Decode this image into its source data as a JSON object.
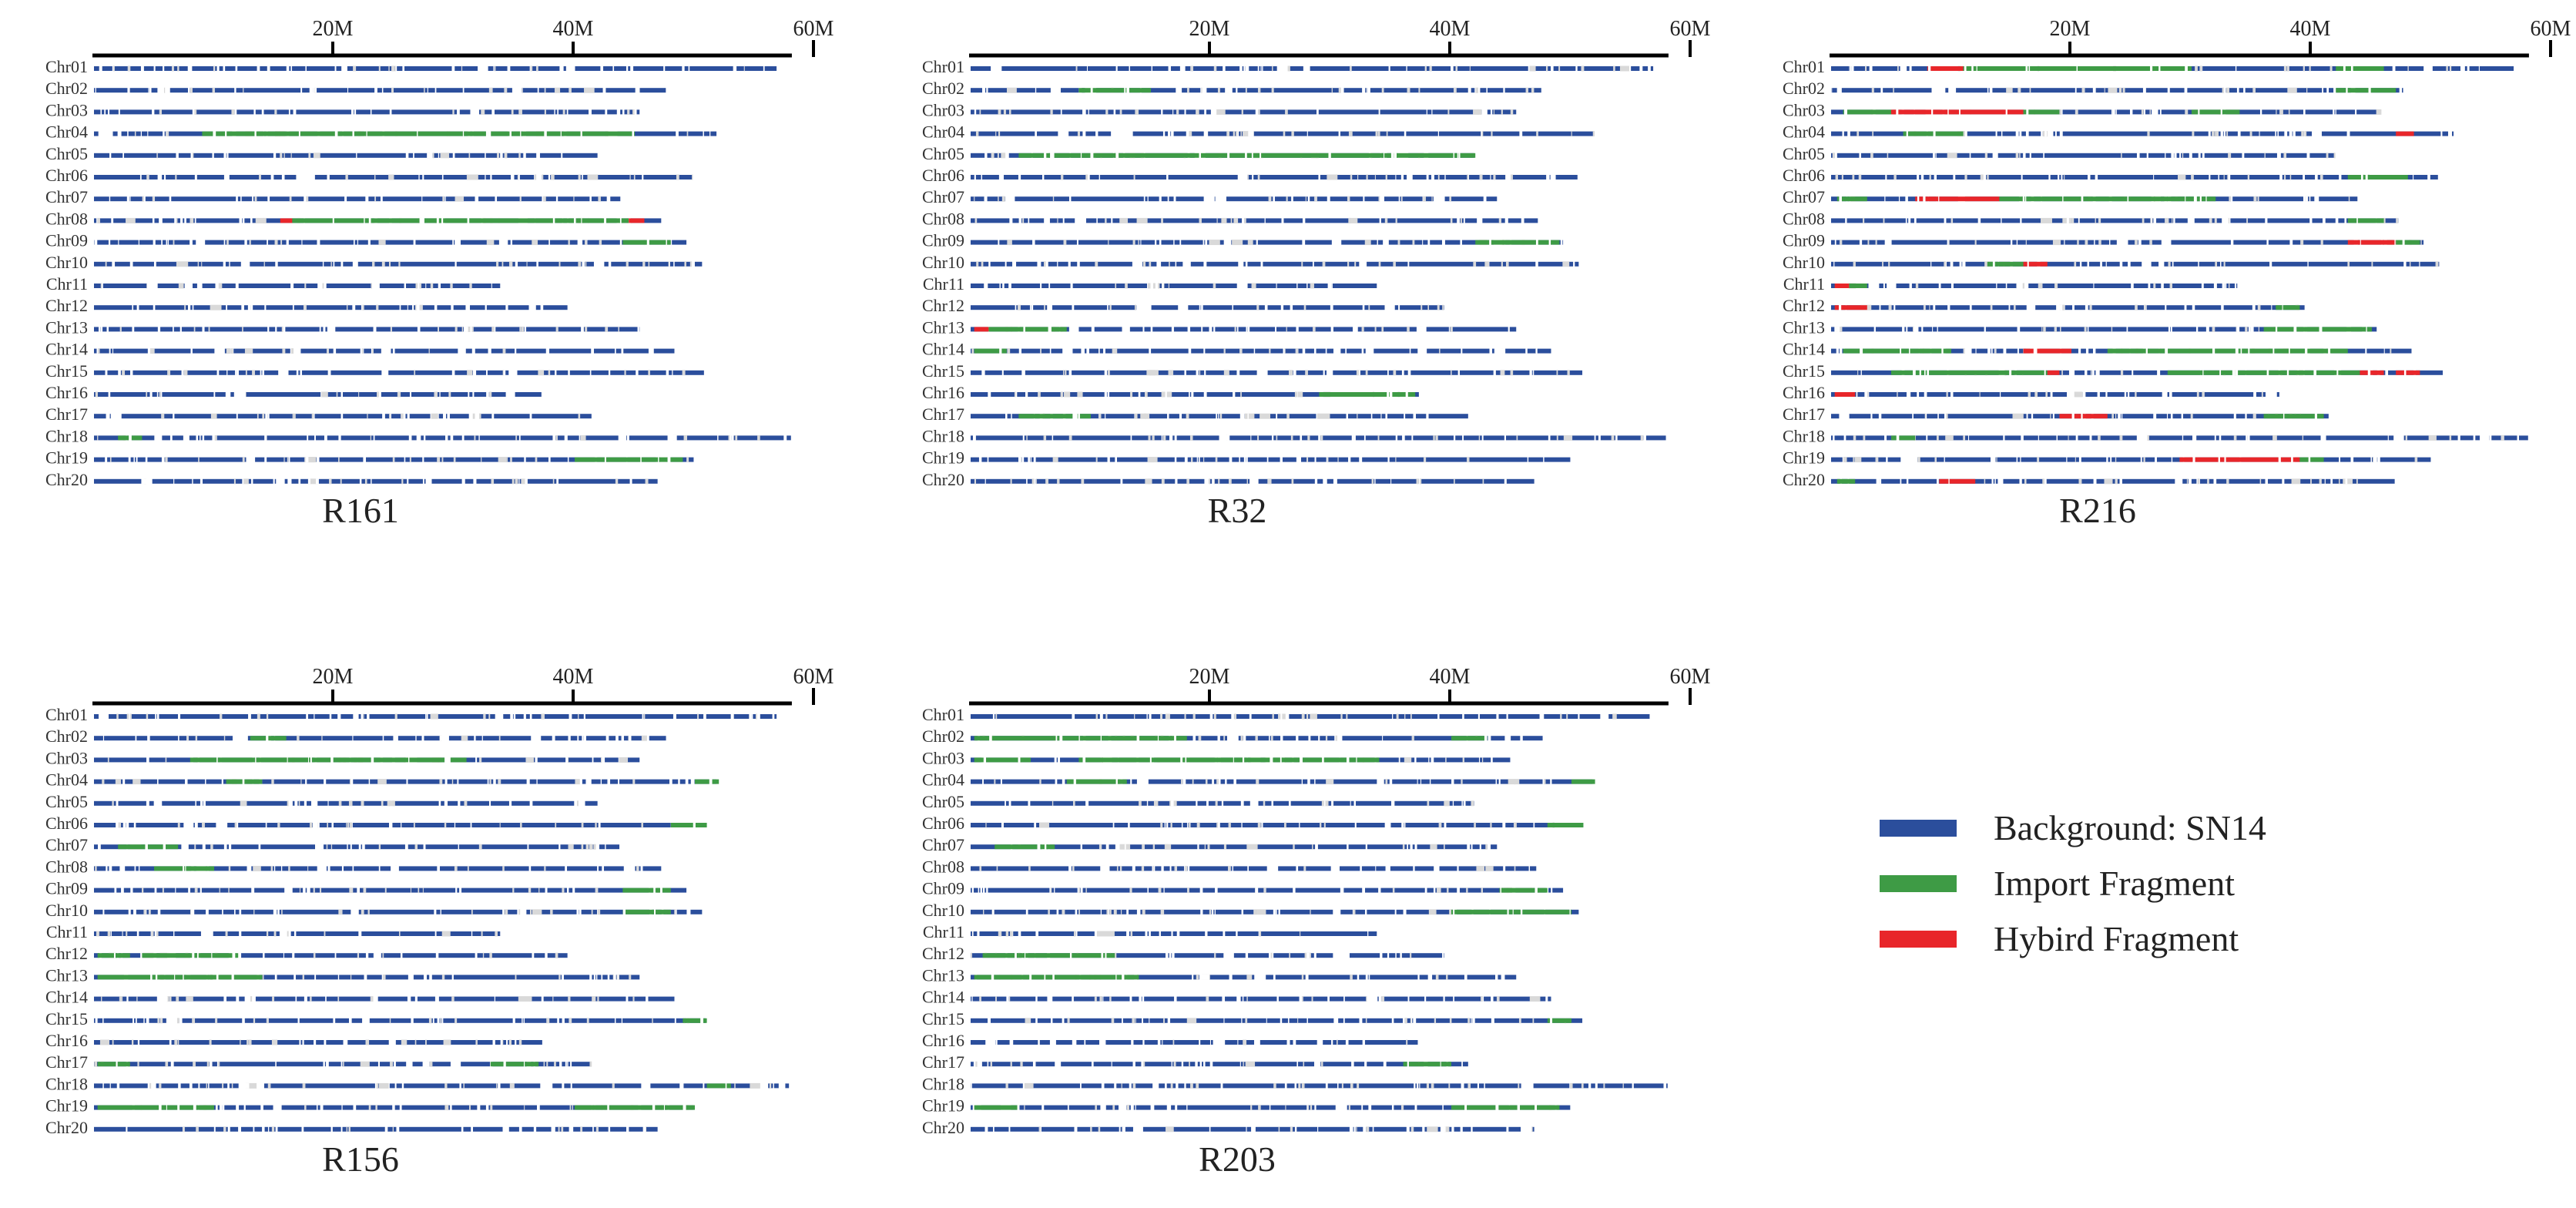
{
  "chart_data": {
    "type": "chromosome-segment-map",
    "axis": {
      "unit": "M",
      "tick_values": [
        20,
        40,
        60
      ],
      "tick_labels": [
        "20M",
        "40M",
        "60M"
      ],
      "x_range": [
        0,
        60
      ]
    },
    "chromosome_labels": [
      "Chr01",
      "Chr02",
      "Chr03",
      "Chr04",
      "Chr05",
      "Chr06",
      "Chr07",
      "Chr08",
      "Chr09",
      "Chr10",
      "Chr11",
      "Chr12",
      "Chr13",
      "Chr14",
      "Chr15",
      "Chr16",
      "Chr17",
      "Chr18",
      "Chr19",
      "Chr20"
    ],
    "chromosome_lengths_mb": [
      56.8,
      47.6,
      45.4,
      51.8,
      41.9,
      50.5,
      43.8,
      47.2,
      49.3,
      50.6,
      33.8,
      39.4,
      45.4,
      48.3,
      50.9,
      37.3,
      41.4,
      58.0,
      49.9,
      46.9
    ],
    "legend": [
      {
        "key": "background",
        "label": "Background: SN14",
        "color": "#2b4e9c"
      },
      {
        "key": "import",
        "label": "Import Fragment",
        "color": "#3e9b45"
      },
      {
        "key": "hybrid",
        "label": "Hybird Fragment",
        "color": "#e8262a"
      }
    ],
    "panels": [
      {
        "name": "R161",
        "segments": {
          "Chr04": [
            [
              "import",
              9,
              45
            ]
          ],
          "Chr08": [
            [
              "hybrid",
              15.5,
              16.5
            ],
            [
              "import",
              16.5,
              44.5
            ],
            [
              "hybrid",
              44.5,
              45.8
            ]
          ],
          "Chr09": [
            [
              "import",
              44,
              48
            ]
          ],
          "Chr18": [
            [
              "import",
              2,
              4
            ]
          ],
          "Chr19": [
            [
              "import",
              40,
              49
            ]
          ]
        }
      },
      {
        "name": "R32",
        "segments": {
          "Chr02": [
            [
              "import",
              9,
              15
            ]
          ],
          "Chr05": [
            [
              "import",
              4,
              42
            ]
          ],
          "Chr09": [
            [
              "import",
              42,
              49
            ]
          ],
          "Chr13": [
            [
              "hybrid",
              0.3,
              1.5
            ],
            [
              "import",
              1.5,
              8
            ]
          ],
          "Chr14": [
            [
              "import",
              0.3,
              3
            ]
          ],
          "Chr16": [
            [
              "import",
              29,
              37
            ]
          ],
          "Chr17": [
            [
              "import",
              4,
              10
            ]
          ]
        }
      },
      {
        "name": "R216",
        "segments": {
          "Chr01": [
            [
              "hybrid",
              8,
              11
            ],
            [
              "import",
              11,
              30
            ],
            [
              "import",
              42,
              46
            ]
          ],
          "Chr02": [
            [
              "import",
              42,
              47
            ]
          ],
          "Chr03": [
            [
              "import",
              1,
              5
            ],
            [
              "hybrid",
              5,
              16
            ],
            [
              "import",
              16,
              19
            ],
            [
              "import",
              30,
              34
            ]
          ],
          "Chr04": [
            [
              "import",
              6,
              11
            ],
            [
              "hybrid",
              47,
              48.5
            ]
          ],
          "Chr06": [
            [
              "import",
              43,
              48
            ]
          ],
          "Chr07": [
            [
              "import",
              0.5,
              3
            ],
            [
              "hybrid",
              7,
              14
            ],
            [
              "import",
              14,
              32
            ]
          ],
          "Chr08": [
            [
              "import",
              43,
              46
            ]
          ],
          "Chr09": [
            [
              "hybrid",
              43,
              47
            ],
            [
              "import",
              47,
              49
            ]
          ],
          "Chr10": [
            [
              "import",
              13,
              16
            ],
            [
              "hybrid",
              16,
              18
            ]
          ],
          "Chr11": [
            [
              "hybrid",
              0.3,
              1.5
            ],
            [
              "import",
              1.5,
              3
            ]
          ],
          "Chr12": [
            [
              "hybrid",
              0.3,
              3
            ],
            [
              "import",
              37,
              39
            ]
          ],
          "Chr13": [
            [
              "import",
              36,
              45
            ]
          ],
          "Chr14": [
            [
              "import",
              1,
              10
            ],
            [
              "hybrid",
              16,
              20
            ],
            [
              "import",
              23,
              43
            ]
          ],
          "Chr15": [
            [
              "import",
              5,
              18
            ],
            [
              "hybrid",
              18,
              19
            ],
            [
              "import",
              28,
              44
            ],
            [
              "hybrid",
              44,
              46
            ],
            [
              "hybrid",
              47,
              49
            ]
          ],
          "Chr16": [
            [
              "hybrid",
              0.3,
              2
            ]
          ],
          "Chr17": [
            [
              "hybrid",
              19,
              23
            ],
            [
              "import",
              36,
              41
            ]
          ],
          "Chr18": [
            [
              "import",
              5,
              7
            ]
          ],
          "Chr19": [
            [
              "hybrid",
              29,
              39
            ],
            [
              "import",
              39,
              41
            ]
          ],
          "Chr20": [
            [
              "import",
              0.5,
              2
            ],
            [
              "hybrid",
              9,
              12
            ]
          ]
        }
      },
      {
        "name": "R156",
        "segments": {
          "Chr02": [
            [
              "import",
              13,
              16
            ]
          ],
          "Chr03": [
            [
              "import",
              8,
              31
            ]
          ],
          "Chr04": [
            [
              "import",
              11,
              14
            ],
            [
              "import",
              50,
              52
            ]
          ],
          "Chr06": [
            [
              "import",
              48,
              51
            ]
          ],
          "Chr07": [
            [
              "import",
              2,
              7
            ]
          ],
          "Chr08": [
            [
              "import",
              5,
              10
            ]
          ],
          "Chr09": [
            [
              "import",
              44,
              48
            ]
          ],
          "Chr10": [
            [
              "import",
              44,
              48
            ]
          ],
          "Chr12": [
            [
              "import",
              0.3,
              3
            ],
            [
              "import",
              4,
              12
            ]
          ],
          "Chr13": [
            [
              "import",
              0.3,
              14
            ]
          ],
          "Chr15": [
            [
              "import",
              49,
              51
            ]
          ],
          "Chr17": [
            [
              "import",
              0.3,
              3
            ],
            [
              "import",
              33,
              37
            ]
          ],
          "Chr18": [
            [
              "import",
              51,
              53
            ]
          ],
          "Chr19": [
            [
              "import",
              0.3,
              10
            ],
            [
              "import",
              40,
              50
            ]
          ]
        }
      },
      {
        "name": "R203",
        "segments": {
          "Chr02": [
            [
              "import",
              0.3,
              18
            ],
            [
              "import",
              40,
              43
            ]
          ],
          "Chr03": [
            [
              "import",
              0.3,
              5
            ],
            [
              "import",
              9,
              34
            ]
          ],
          "Chr04": [
            [
              "import",
              8,
              13
            ],
            [
              "import",
              50,
              52
            ]
          ],
          "Chr06": [
            [
              "import",
              48,
              51
            ]
          ],
          "Chr07": [
            [
              "import",
              2,
              7
            ]
          ],
          "Chr09": [
            [
              "import",
              44,
              48
            ]
          ],
          "Chr10": [
            [
              "import",
              40,
              50
            ]
          ],
          "Chr12": [
            [
              "import",
              1,
              4
            ],
            [
              "import",
              4,
              12
            ]
          ],
          "Chr13": [
            [
              "import",
              0.3,
              14
            ]
          ],
          "Chr15": [
            [
              "import",
              48,
              50
            ]
          ],
          "Chr17": [
            [
              "import",
              36,
              40
            ]
          ],
          "Chr19": [
            [
              "import",
              0.3,
              4
            ],
            [
              "import",
              40,
              49
            ]
          ]
        }
      }
    ]
  }
}
